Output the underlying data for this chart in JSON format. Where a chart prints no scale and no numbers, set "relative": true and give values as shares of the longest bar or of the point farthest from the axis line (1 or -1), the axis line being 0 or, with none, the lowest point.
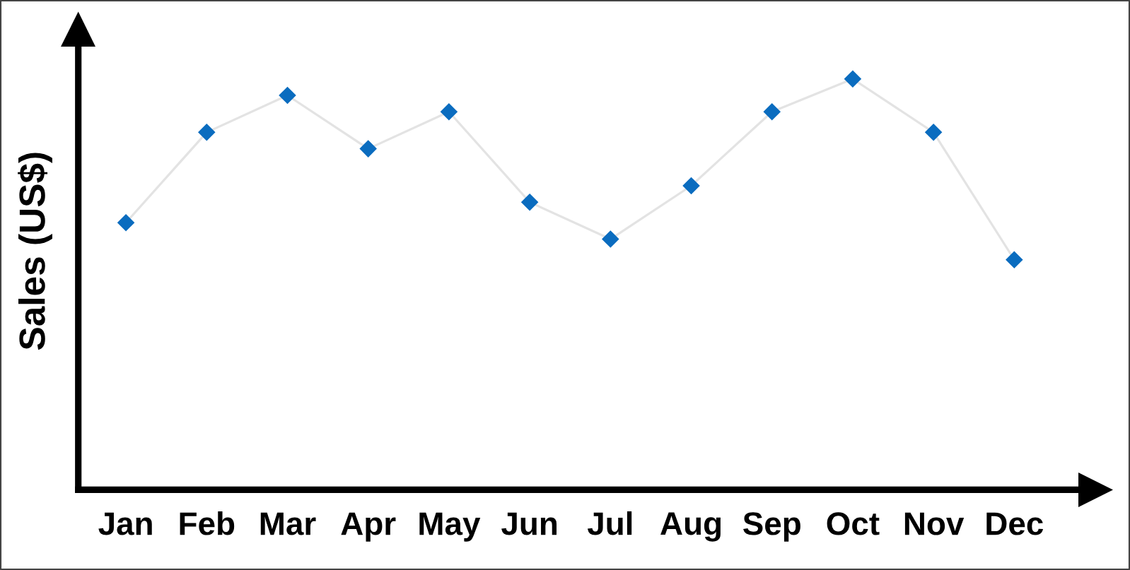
{
  "chart_data": {
    "type": "line",
    "ylabel": "Sales (US$)",
    "categories": [
      "Jan",
      "Feb",
      "Mar",
      "Apr",
      "May",
      "Jun",
      "Jul",
      "Aug",
      "Sep",
      "Oct",
      "Nov",
      "Dec"
    ],
    "series": [
      {
        "color": "#0a6cbf",
        "values": [
          0.65,
          0.87,
          0.96,
          0.83,
          0.92,
          0.7,
          0.61,
          0.74,
          0.92,
          1,
          0.87,
          0.56
        ]
      }
    ],
    "relative": true,
    "marker": "diamond",
    "line_style": "solid"
  }
}
